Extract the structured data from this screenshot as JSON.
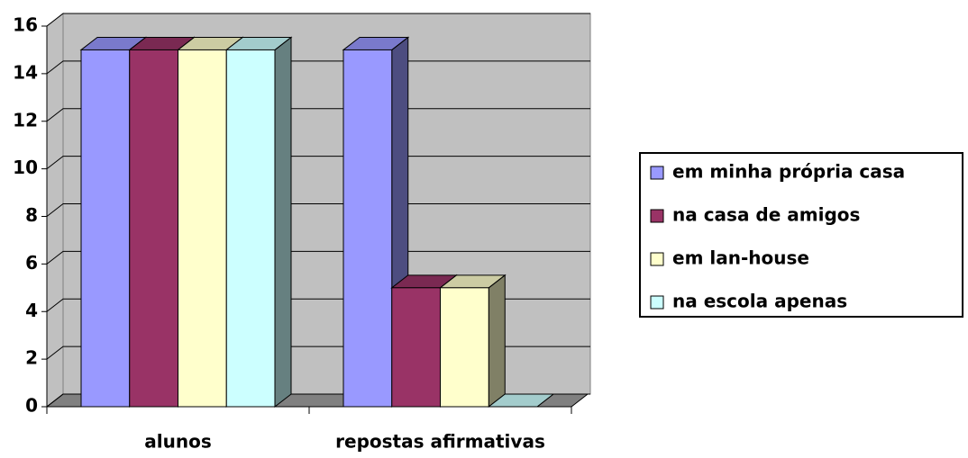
{
  "chart_data": {
    "type": "bar3d",
    "categories": [
      "alunos",
      "repostas afirmativas"
    ],
    "series": [
      {
        "name": "em minha própria casa",
        "color": "#9999ff",
        "values": [
          15,
          15
        ]
      },
      {
        "name": "na casa de amigos",
        "color": "#993366",
        "values": [
          15,
          5
        ]
      },
      {
        "name": "em lan-house",
        "color": "#ffffcc",
        "values": [
          15,
          5
        ]
      },
      {
        "name": "na escola apenas",
        "color": "#ccffff",
        "values": [
          15,
          0
        ]
      }
    ],
    "ylim": [
      0,
      16
    ],
    "yticks": [
      0,
      2,
      4,
      6,
      8,
      10,
      12,
      14,
      16
    ],
    "grid": true,
    "legend": "right"
  }
}
